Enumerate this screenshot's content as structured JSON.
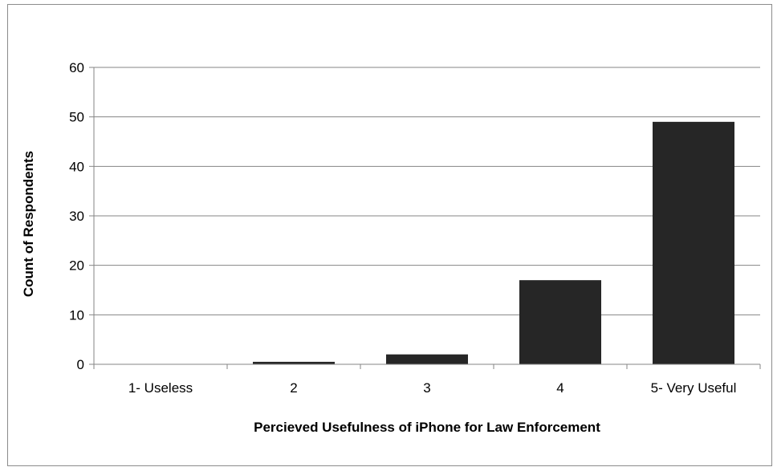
{
  "chart_data": {
    "type": "bar",
    "categories": [
      "1- Useless",
      "2",
      "3",
      "4",
      "5- Very Useful"
    ],
    "values": [
      0,
      0.5,
      2,
      17,
      49
    ],
    "title": "",
    "xlabel": "Percieved Usefulness of iPhone for Law Enforcement",
    "ylabel": "Count of Respondents",
    "ylim": [
      0,
      60
    ],
    "yticks": [
      0,
      10,
      20,
      30,
      40,
      50,
      60
    ],
    "grid": true,
    "legend": "none",
    "bar_color": "#262626"
  }
}
